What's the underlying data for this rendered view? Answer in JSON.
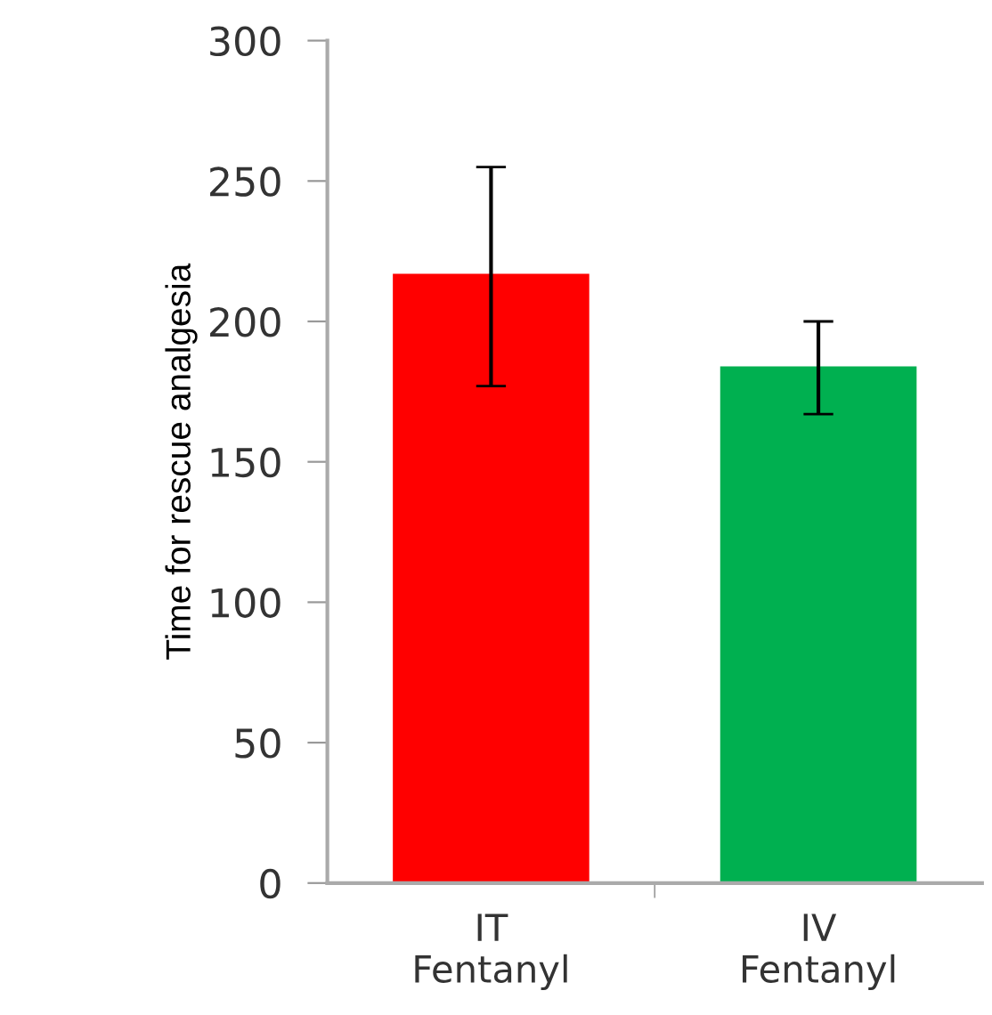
{
  "chart_data": {
    "type": "bar",
    "ylabel": "Time for rescue analgesia",
    "categories": [
      "IT\nFentanyl",
      "IV\nFentanyl"
    ],
    "values": [
      217,
      184
    ],
    "colors": [
      "#ff0000",
      "#00b050"
    ],
    "errors": [
      [
        177,
        255
      ],
      [
        167,
        200
      ]
    ],
    "ylim": [
      0,
      300
    ],
    "yticks": [
      0,
      50,
      100,
      150,
      200,
      250,
      300
    ],
    "grid": false,
    "legend": false
  }
}
